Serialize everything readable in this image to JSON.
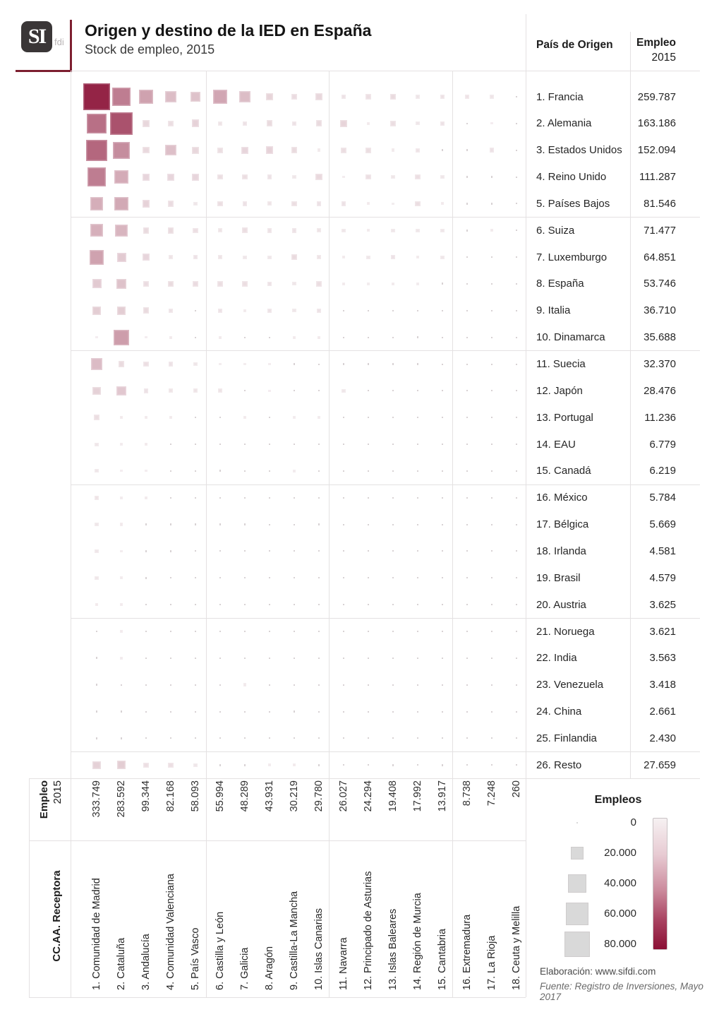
{
  "header": {
    "logo_text": "SI",
    "logo_sub": "fdi",
    "title": "Origen y destino de la IED en España",
    "subtitle": "Stock de empleo, 2015"
  },
  "origin_panel": {
    "col_header": "País de Origen",
    "value_header_line1": "Empleo",
    "value_header_line2": "2015",
    "countries": [
      {
        "label": "1. Francia",
        "value": "259.787"
      },
      {
        "label": "2. Alemania",
        "value": "163.186"
      },
      {
        "label": "3. Estados Unidos",
        "value": "152.094"
      },
      {
        "label": "4. Reino Unido",
        "value": "111.287"
      },
      {
        "label": "5. Países Bajos",
        "value": "81.546"
      },
      {
        "label": "6. Suiza",
        "value": "71.477"
      },
      {
        "label": "7. Luxemburgo",
        "value": "64.851"
      },
      {
        "label": "8. España",
        "value": "53.746"
      },
      {
        "label": "9. Italia",
        "value": "36.710"
      },
      {
        "label": "10. Dinamarca",
        "value": "35.688"
      },
      {
        "label": "11. Suecia",
        "value": "32.370"
      },
      {
        "label": "12. Japón",
        "value": "28.476"
      },
      {
        "label": "13. Portugal",
        "value": "11.236"
      },
      {
        "label": "14. EAU",
        "value": "6.779"
      },
      {
        "label": "15. Canadá",
        "value": "6.219"
      },
      {
        "label": "16. México",
        "value": "5.784"
      },
      {
        "label": "17. Bélgica",
        "value": "5.669"
      },
      {
        "label": "18. Irlanda",
        "value": "4.581"
      },
      {
        "label": "19. Brasil",
        "value": "4.579"
      },
      {
        "label": "20. Austria",
        "value": "3.625"
      },
      {
        "label": "21. Noruega",
        "value": "3.621"
      },
      {
        "label": "22. India",
        "value": "3.563"
      },
      {
        "label": "23. Venezuela",
        "value": "3.418"
      },
      {
        "label": "24. China",
        "value": "2.661"
      },
      {
        "label": "25. Finlandia",
        "value": "2.430"
      },
      {
        "label": "26. Resto",
        "value": "27.659"
      }
    ]
  },
  "bottom": {
    "totals_header_line1": "Empleo",
    "totals_header_line2": "2015",
    "row_header": "CC.AA. Receptora",
    "totals": [
      "333.749",
      "283.592",
      "99.344",
      "82.168",
      "58.093",
      "55.994",
      "48.289",
      "43.931",
      "30.219",
      "29.780",
      "26.027",
      "24.294",
      "19.408",
      "17.992",
      "13.917",
      "8.738",
      "7.248",
      "260"
    ],
    "regions": [
      "1. Comunidad de Madrid",
      "2. Cataluña",
      "3. Andalucía",
      "4. Comunidad Valenciana",
      "5. País Vasco",
      "6. Castilla y León",
      "7. Galicia",
      "8. Aragón",
      "9. Castilla-La Mancha",
      "10. Islas Canarias",
      "11. Navarra",
      "12. Principado de Asturias",
      "13. Islas Baleares",
      "14. Región de Murcia",
      "15. Cantabria",
      "16. Extremadura",
      "17. La Rioja",
      "18. Ceuta y Melilla"
    ]
  },
  "legend": {
    "title": "Empleos",
    "items": [
      {
        "label": "0",
        "value": 0
      },
      {
        "label": "20.000",
        "value": 20000
      },
      {
        "label": "40.000",
        "value": 40000
      },
      {
        "label": "60.000",
        "value": 60000
      },
      {
        "label": "80.000",
        "value": 80000
      }
    ],
    "gradient_top_color": "#f6f1f2",
    "gradient_bottom_color": "#8b1035"
  },
  "footer": {
    "elaboracion": "Elaboración: www.sifdi.com",
    "fuente": "Fuente: Registro de Inversiones, Mayo 2017"
  },
  "colors": {
    "accent_dark": "#8b1035",
    "cell_low": "#f1eaec",
    "grid_line": "#e4e1e2",
    "logo_red": "#7d1f30",
    "legend_gray": "#d9d9d9"
  },
  "chart_data": {
    "type": "heatmap",
    "title": "Origen y destino de la IED en España",
    "subtitle": "Stock de empleo, 2015",
    "unit": "empleos",
    "encoding": "square area and color darkness proportional to employment; cell values are visual estimates, marginal totals are exact as printed",
    "columns": [
      "Comunidad de Madrid",
      "Cataluña",
      "Andalucía",
      "Comunidad Valenciana",
      "País Vasco",
      "Castilla y León",
      "Galicia",
      "Aragón",
      "Castilla-La Mancha",
      "Islas Canarias",
      "Navarra",
      "Principado de Asturias",
      "Islas Baleares",
      "Región de Murcia",
      "Cantabria",
      "Extremadura",
      "La Rioja",
      "Ceuta y Melilla"
    ],
    "column_totals": [
      333749,
      283592,
      99344,
      82168,
      58093,
      55994,
      48289,
      43931,
      30219,
      29780,
      26027,
      24294,
      19408,
      17992,
      13917,
      8738,
      7248,
      260
    ],
    "rows": [
      "Francia",
      "Alemania",
      "Estados Unidos",
      "Reino Unido",
      "Países Bajos",
      "Suiza",
      "Luxemburgo",
      "España",
      "Italia",
      "Dinamarca",
      "Suecia",
      "Japón",
      "Portugal",
      "EAU",
      "Canadá",
      "México",
      "Bélgica",
      "Irlanda",
      "Brasil",
      "Austria",
      "Noruega",
      "India",
      "Venezuela",
      "China",
      "Finlandia",
      "Resto"
    ],
    "row_totals": [
      259787,
      163186,
      152094,
      111287,
      81546,
      71477,
      64851,
      53746,
      36710,
      35688,
      32370,
      28476,
      11236,
      6779,
      6219,
      5784,
      5669,
      4581,
      4579,
      3625,
      3621,
      3563,
      3418,
      2661,
      2430,
      27659
    ],
    "cells": [
      [
        85000,
        42000,
        26000,
        15000,
        13000,
        24000,
        15000,
        6500,
        4000,
        5500,
        2500,
        3000,
        4500,
        1800,
        2800,
        2200,
        1700,
        100
      ],
      [
        48000,
        62000,
        5500,
        3500,
        7000,
        2000,
        2500,
        4500,
        2500,
        4500,
        6500,
        1000,
        3500,
        1500,
        2500,
        400,
        600,
        100
      ],
      [
        52000,
        35000,
        5000,
        14000,
        5500,
        3500,
        6000,
        7000,
        4500,
        1200,
        3500,
        3500,
        1200,
        2200,
        500,
        400,
        2500,
        100
      ],
      [
        42000,
        22000,
        6000,
        6000,
        6000,
        3500,
        3500,
        2500,
        1500,
        5000,
        800,
        3000,
        1800,
        3000,
        1500,
        300,
        500,
        100
      ],
      [
        21000,
        23000,
        7000,
        4000,
        1500,
        3500,
        2500,
        2000,
        3500,
        2500,
        2500,
        1000,
        800,
        3500,
        1000,
        500,
        400,
        50
      ],
      [
        20000,
        18000,
        4500,
        4500,
        3000,
        2000,
        3500,
        2500,
        2500,
        2000,
        1500,
        1000,
        1500,
        1500,
        1500,
        500,
        1000,
        50
      ],
      [
        26000,
        10000,
        6000,
        2000,
        2500,
        2000,
        1500,
        1500,
        4500,
        2000,
        1000,
        1500,
        2500,
        1000,
        1500,
        300,
        300,
        50
      ],
      [
        10000,
        13000,
        4000,
        4500,
        4000,
        3500,
        3500,
        2500,
        1500,
        3500,
        1000,
        700,
        1000,
        800,
        500,
        300,
        300,
        100
      ],
      [
        9000,
        9000,
        4500,
        2500,
        300,
        2500,
        1200,
        2500,
        1500,
        2500,
        300,
        300,
        400,
        300,
        300,
        100,
        100,
        50
      ],
      [
        600,
        28000,
        600,
        1000,
        300,
        1000,
        300,
        300,
        1000,
        1000,
        300,
        200,
        200,
        500,
        200,
        100,
        100,
        0
      ],
      [
        15500,
        4500,
        3000,
        2500,
        1800,
        800,
        800,
        800,
        400,
        200,
        300,
        500,
        300,
        300,
        200,
        100,
        100,
        0
      ],
      [
        7500,
        11000,
        2500,
        2000,
        2000,
        2000,
        200,
        600,
        300,
        200,
        1500,
        100,
        100,
        200,
        100,
        50,
        50,
        0
      ],
      [
        3500,
        1000,
        1000,
        1200,
        300,
        300,
        1000,
        300,
        800,
        800,
        100,
        200,
        200,
        300,
        100,
        200,
        100,
        0
      ],
      [
        1500,
        800,
        1200,
        300,
        300,
        300,
        300,
        300,
        200,
        300,
        100,
        300,
        300,
        200,
        100,
        50,
        50,
        0
      ],
      [
        1500,
        600,
        600,
        300,
        300,
        500,
        300,
        300,
        800,
        300,
        100,
        100,
        200,
        100,
        100,
        50,
        50,
        0
      ],
      [
        2000,
        800,
        1000,
        300,
        200,
        200,
        200,
        200,
        100,
        300,
        100,
        100,
        100,
        100,
        50,
        20,
        20,
        0
      ],
      [
        1500,
        1200,
        500,
        500,
        300,
        300,
        300,
        200,
        200,
        300,
        100,
        100,
        200,
        100,
        50,
        20,
        20,
        0
      ],
      [
        1500,
        800,
        400,
        300,
        200,
        200,
        200,
        200,
        100,
        200,
        100,
        100,
        100,
        100,
        50,
        20,
        20,
        0
      ],
      [
        1500,
        800,
        400,
        300,
        200,
        200,
        200,
        200,
        100,
        200,
        100,
        100,
        100,
        100,
        50,
        20,
        20,
        0
      ],
      [
        1000,
        800,
        300,
        200,
        200,
        200,
        100,
        200,
        100,
        100,
        50,
        50,
        100,
        100,
        50,
        20,
        20,
        0
      ],
      [
        500,
        800,
        300,
        200,
        200,
        500,
        200,
        100,
        100,
        100,
        50,
        100,
        100,
        100,
        50,
        20,
        20,
        0
      ],
      [
        500,
        800,
        200,
        200,
        400,
        200,
        300,
        300,
        100,
        100,
        50,
        50,
        50,
        100,
        50,
        20,
        20,
        0
      ],
      [
        500,
        300,
        200,
        200,
        100,
        100,
        1200,
        100,
        100,
        100,
        50,
        50,
        50,
        50,
        50,
        20,
        20,
        0
      ],
      [
        500,
        400,
        200,
        200,
        100,
        100,
        100,
        100,
        400,
        100,
        50,
        50,
        50,
        50,
        50,
        20,
        20,
        0
      ],
      [
        300,
        500,
        200,
        100,
        100,
        100,
        100,
        100,
        100,
        100,
        50,
        50,
        50,
        50,
        50,
        20,
        20,
        0
      ],
      [
        7500,
        9000,
        3000,
        3000,
        1500,
        500,
        500,
        800,
        1200,
        500,
        200,
        300,
        500,
        300,
        400,
        100,
        100,
        60
      ]
    ],
    "size_legend": {
      "0": 0,
      "20.000": 20000,
      "40.000": 40000,
      "60.000": 60000,
      "80.000": 80000
    },
    "color_range": [
      "#f1eaec",
      "#8b1035"
    ],
    "legend_position": "bottom-right",
    "grid": "light group separators every 5 rows/columns"
  }
}
